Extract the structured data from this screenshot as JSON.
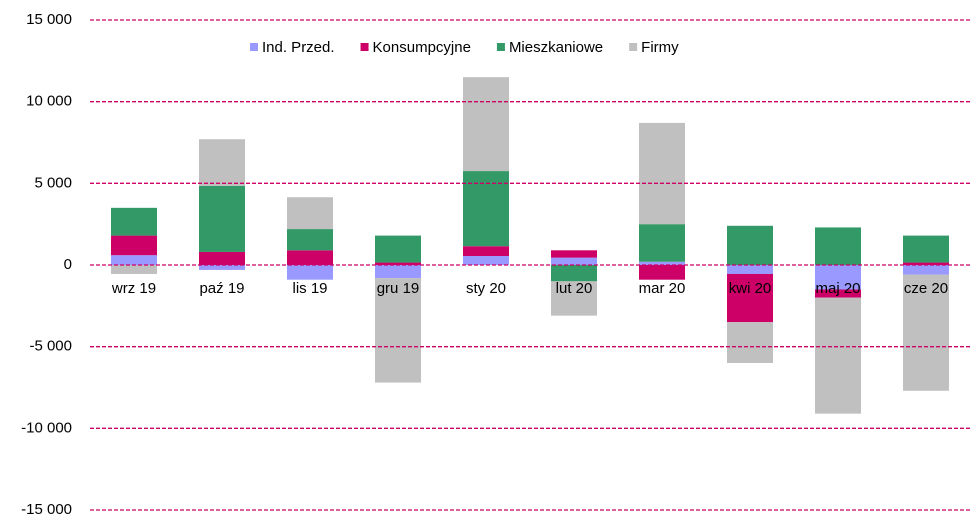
{
  "chart_data": {
    "type": "stacked_bar",
    "categories": [
      "wrz 19",
      "paź 19",
      "lis 19",
      "gru 19",
      "sty 20",
      "lut 20",
      "mar 20",
      "kwi 20",
      "maj 20",
      "cze 20"
    ],
    "series": [
      {
        "name": "Ind. Przed.",
        "color": "#9999ff",
        "values": [
          600,
          -300,
          -900,
          -800,
          550,
          450,
          200,
          -550,
          -1500,
          -600
        ]
      },
      {
        "name": "Konsumpcyjne",
        "color": "#cc0066",
        "values": [
          1200,
          800,
          900,
          150,
          600,
          450,
          -900,
          -2950,
          -500,
          150
        ]
      },
      {
        "name": "Mieszkaniowe",
        "color": "#339966",
        "values": [
          1700,
          4050,
          1300,
          1650,
          4600,
          -1000,
          2300,
          2400,
          2300,
          1650
        ]
      },
      {
        "name": "Firmy",
        "color": "#c0c0c0",
        "values": [
          -550,
          2850,
          1950,
          -6400,
          5750,
          -2100,
          6200,
          -2500,
          -7100,
          -7100
        ]
      }
    ],
    "ylim": [
      -15000,
      15000
    ],
    "yticks": [
      {
        "value": -15000,
        "label": "-15 000"
      },
      {
        "value": -10000,
        "label": "-10 000"
      },
      {
        "value": -5000,
        "label": "-5 000"
      },
      0,
      {
        "value": 5000,
        "label": "5 000"
      },
      {
        "value": 10000,
        "label": "10 000"
      },
      {
        "value": 15000,
        "label": "15 000"
      }
    ],
    "grid": true,
    "legend": "top"
  }
}
